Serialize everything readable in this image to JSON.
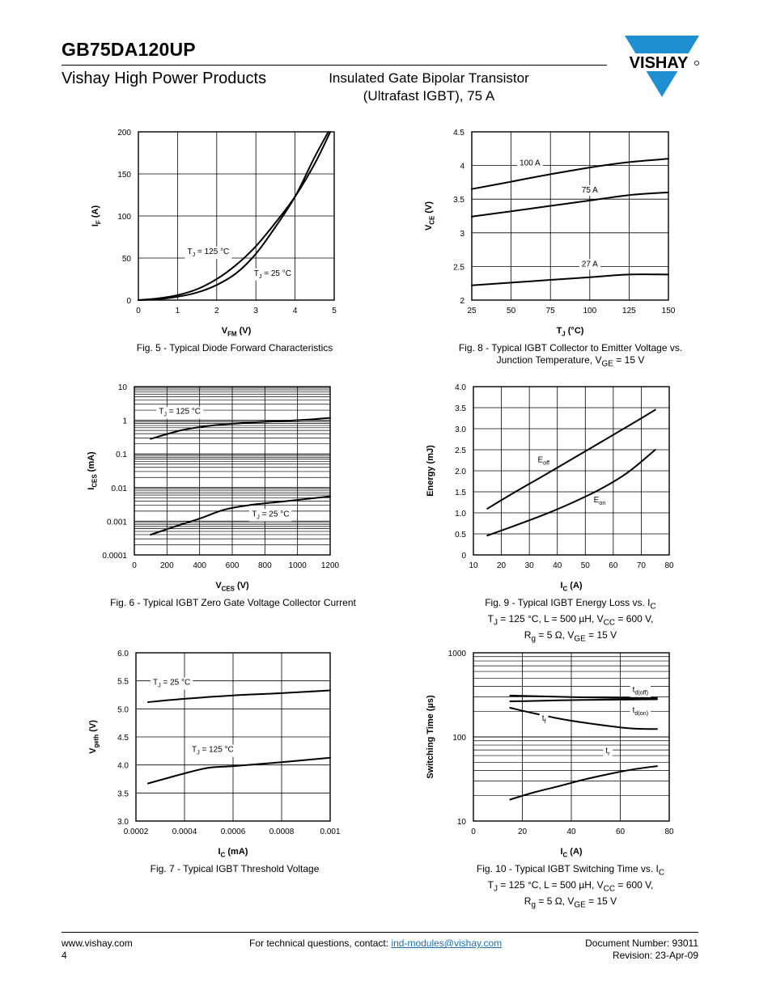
{
  "header": {
    "part_number": "GB75DA120UP",
    "division": "Vishay High Power Products",
    "subtitle_line1": "Insulated Gate Bipolar Transistor",
    "subtitle_line2": "(Ultrafast IGBT), 75 A",
    "logo_text": "VISHAY",
    "logo_color": "#1e8fd0"
  },
  "footer": {
    "website": "www.vishay.com",
    "page_number": "4",
    "contact_prefix": "For technical questions, contact: ",
    "contact_email": "ind-modules@vishay.com",
    "document_number": "Document Number: 93011",
    "revision": "Revision: 23-Apr-09"
  },
  "chart_data": [
    {
      "id": "fig5",
      "type": "line",
      "caption": [
        "Fig. 5 - Typical Diode Forward Characteristics"
      ],
      "xlabel": "V",
      "xlabel_sub": "FM",
      "xlabel_unit": " (V)",
      "ylabel": "I",
      "ylabel_sub": "F",
      "ylabel_unit": " (A)",
      "xscale": "linear",
      "yscale": "linear",
      "xlim": [
        0,
        5
      ],
      "ylim": [
        0,
        200
      ],
      "xticks": [
        0,
        1,
        2,
        3,
        4,
        5
      ],
      "yticks": [
        0,
        50,
        100,
        150,
        200
      ],
      "xgrid": [
        1,
        2,
        3,
        4
      ],
      "ygrid": [
        50,
        100,
        150
      ],
      "series": [
        {
          "name": "TJ = 125 °C",
          "label_main": "T",
          "label_sub": "J",
          "label_rest": " = 125 °C",
          "label_at": [
            1.25,
            55
          ],
          "label_anchor": "start",
          "x": [
            0,
            0.5,
            1.0,
            1.5,
            2.0,
            2.5,
            3.0,
            3.5,
            4.0,
            4.5,
            4.9
          ],
          "y": [
            0,
            2,
            6,
            13,
            25,
            42,
            64,
            92,
            123,
            162,
            200
          ]
        },
        {
          "name": "TJ = 25 °C",
          "label_main": "T",
          "label_sub": "J",
          "label_rest": " = 25 °C",
          "label_at": [
            2.95,
            29
          ],
          "label_anchor": "start",
          "x": [
            0,
            0.5,
            1.0,
            1.5,
            2.0,
            2.5,
            3.0,
            3.5,
            4.0,
            4.5,
            4.85
          ],
          "y": [
            0,
            1,
            4,
            9,
            18,
            32,
            55,
            87,
            123,
            170,
            200
          ]
        }
      ]
    },
    {
      "id": "fig8",
      "type": "line",
      "caption": [
        "Fig. 8 - Typical IGBT Collector to Emitter Voltage vs.",
        "Junction Temperature, V",
        "GE",
        " = 15 V"
      ],
      "xlabel": "T",
      "xlabel_sub": "J",
      "xlabel_unit": " (°C)",
      "ylabel": "V",
      "ylabel_sub": "CE",
      "ylabel_unit": " (V)",
      "xscale": "linear",
      "yscale": "linear",
      "xlim": [
        25,
        150
      ],
      "ylim": [
        2.0,
        4.5
      ],
      "xticks": [
        25,
        50,
        75,
        100,
        125,
        150
      ],
      "yticks": [
        2.0,
        2.5,
        3.0,
        3.5,
        4.0,
        4.5
      ],
      "xgrid": [
        50,
        75,
        100,
        125
      ],
      "ygrid": [
        2.5,
        3.0,
        3.5,
        4.0
      ],
      "series": [
        {
          "name": "100 A",
          "label_main": "100 A",
          "label_sub": "",
          "label_rest": "",
          "label_at": [
            62,
            4.0
          ],
          "label_anchor": "middle",
          "x": [
            25,
            50,
            75,
            100,
            125,
            150
          ],
          "y": [
            3.65,
            3.76,
            3.87,
            3.97,
            4.05,
            4.1
          ]
        },
        {
          "name": "75 A",
          "label_main": "75 A",
          "label_sub": "",
          "label_rest": "",
          "label_at": [
            100,
            3.6
          ],
          "label_anchor": "middle",
          "x": [
            25,
            50,
            75,
            100,
            125,
            150
          ],
          "y": [
            3.24,
            3.32,
            3.4,
            3.48,
            3.56,
            3.6
          ]
        },
        {
          "name": "27 A",
          "label_main": "27 A",
          "label_sub": "",
          "label_rest": "",
          "label_at": [
            100,
            2.5
          ],
          "label_anchor": "middle",
          "x": [
            25,
            50,
            75,
            100,
            125,
            150
          ],
          "y": [
            2.22,
            2.26,
            2.3,
            2.34,
            2.38,
            2.38
          ]
        }
      ]
    },
    {
      "id": "fig6",
      "type": "line",
      "caption": [
        "Fig. 6 - Typical IGBT Zero Gate Voltage Collector Current"
      ],
      "xlabel": "V",
      "xlabel_sub": "CES",
      "xlabel_unit": " (V)",
      "ylabel": "I",
      "ylabel_sub": "CES",
      "ylabel_unit": " (mA)",
      "xscale": "linear",
      "yscale": "log",
      "xlim": [
        0,
        1200
      ],
      "ylim": [
        0.0001,
        10
      ],
      "xticks": [
        0,
        200,
        400,
        600,
        800,
        1000,
        1200
      ],
      "yticks": [
        0.0001,
        0.001,
        0.01,
        0.1,
        1,
        10
      ],
      "ytick_labels": [
        "0.0001",
        "0.001",
        "0.01",
        "0.1",
        "1",
        "10"
      ],
      "xgrid": [
        200,
        400,
        600,
        800,
        1000
      ],
      "ygrid": "log-minor",
      "series": [
        {
          "name": "TJ = 125 °C",
          "label_main": "T",
          "label_sub": "J",
          "label_rest": " = 125 °C",
          "label_at": [
            150,
            1.55
          ],
          "label_anchor": "start",
          "x": [
            100,
            300,
            500,
            700,
            900,
            1100,
            1200
          ],
          "y": [
            0.28,
            0.52,
            0.72,
            0.85,
            0.95,
            1.08,
            1.18
          ]
        },
        {
          "name": "TJ = 25 °C",
          "label_main": "T",
          "label_sub": "J",
          "label_rest": " = 25 °C",
          "label_at": [
            720,
            0.0014
          ],
          "label_anchor": "start",
          "x": [
            100,
            250,
            400,
            550,
            700,
            850,
            1000,
            1200
          ],
          "y": [
            0.0004,
            0.0007,
            0.0012,
            0.0022,
            0.003,
            0.0036,
            0.0043,
            0.0055
          ]
        }
      ]
    },
    {
      "id": "fig9",
      "type": "line",
      "caption": [
        "Fig. 9 - Typical IGBT Energy Loss vs. I",
        "C",
        "T",
        "J",
        " = 125 °C, L = 500 µH, V",
        "CC",
        " = 600 V,",
        "R",
        "g",
        " = 5 Ω, V",
        "GE",
        " = 15 V"
      ],
      "xlabel": "I",
      "xlabel_sub": "C",
      "xlabel_unit": " (A)",
      "ylabel": "Energy (mJ)",
      "ylabel_sub": "",
      "ylabel_unit": "",
      "xscale": "linear",
      "yscale": "linear",
      "xlim": [
        10,
        80
      ],
      "ylim": [
        0,
        4.0
      ],
      "xticks": [
        10,
        20,
        30,
        40,
        50,
        60,
        70,
        80
      ],
      "yticks": [
        0,
        0.5,
        1.0,
        1.5,
        2.0,
        2.5,
        3.0,
        3.5,
        4.0
      ],
      "ytick_labels": [
        "0",
        "0.5",
        "1.0",
        "1.5",
        "2.0",
        "2.5",
        "3.0",
        "3.5",
        "4.0"
      ],
      "xgrid": [
        20,
        30,
        40,
        50,
        60,
        70
      ],
      "ygrid": [
        0.5,
        1.0,
        1.5,
        2.0,
        2.5,
        3.0,
        3.5
      ],
      "series": [
        {
          "name": "Eoff",
          "label_main": "E",
          "label_sub": "off",
          "label_rest": "",
          "label_at": [
            33,
            2.2
          ],
          "label_anchor": "start",
          "x": [
            15,
            25,
            35,
            45,
            55,
            65,
            75
          ],
          "y": [
            1.1,
            1.5,
            1.88,
            2.27,
            2.66,
            3.05,
            3.45
          ]
        },
        {
          "name": "Eon",
          "label_main": "E",
          "label_sub": "on",
          "label_rest": "",
          "label_at": [
            53,
            1.25
          ],
          "label_anchor": "start",
          "x": [
            15,
            25,
            35,
            45,
            55,
            65,
            75
          ],
          "y": [
            0.46,
            0.7,
            0.95,
            1.23,
            1.55,
            1.95,
            2.5
          ]
        }
      ]
    },
    {
      "id": "fig7",
      "type": "line",
      "caption": [
        "Fig. 7 - Typical IGBT Threshold Voltage"
      ],
      "xlabel": "I",
      "xlabel_sub": "C",
      "xlabel_unit": " (mA)",
      "ylabel": "V",
      "ylabel_sub": "geth",
      "ylabel_unit": " (V)",
      "xscale": "linear",
      "yscale": "linear",
      "xlim": [
        0.0002,
        0.001
      ],
      "ylim": [
        3.0,
        6.0
      ],
      "xticks": [
        0.0002,
        0.0004,
        0.0006,
        0.0008,
        0.001
      ],
      "xtick_labels": [
        "0.0002",
        "0.0004",
        "0.0006",
        "0.0008",
        "0.001"
      ],
      "yticks": [
        3.0,
        3.5,
        4.0,
        4.5,
        5.0,
        5.5,
        6.0
      ],
      "ytick_labels": [
        "3.0",
        "3.5",
        "4.0",
        "4.5",
        "5.0",
        "5.5",
        "6.0"
      ],
      "xgrid": [
        0.0004,
        0.0006,
        0.0008
      ],
      "ygrid": [
        3.5,
        4.0,
        4.5,
        5.0,
        5.5
      ],
      "series": [
        {
          "name": "TJ = 25 °C",
          "label_main": "T",
          "label_sub": "J",
          "label_rest": " = 25 °C",
          "label_at": [
            0.00027,
            5.43
          ],
          "label_anchor": "start",
          "x": [
            0.00025,
            0.0004,
            0.0006,
            0.0008,
            0.001
          ],
          "y": [
            5.12,
            5.18,
            5.24,
            5.28,
            5.33
          ]
        },
        {
          "name": "TJ = 125 °C",
          "label_main": "T",
          "label_sub": "J",
          "label_rest": " = 125 °C",
          "label_at": [
            0.00043,
            4.23
          ],
          "label_anchor": "start",
          "x": [
            0.00025,
            0.0004,
            0.0005,
            0.0006,
            0.0008,
            0.001
          ],
          "y": [
            3.67,
            3.85,
            3.95,
            3.98,
            4.05,
            4.13
          ]
        }
      ]
    },
    {
      "id": "fig10",
      "type": "line",
      "caption": [
        "Fig. 10 - Typical IGBT Switching Time vs. I",
        "C",
        "T",
        "J",
        " = 125 °C, L = 500 µH, V",
        "CC",
        " = 600 V,",
        "R",
        "g",
        " = 5 Ω, V",
        "GE",
        " = 15 V"
      ],
      "xlabel": "I",
      "xlabel_sub": "C",
      "xlabel_unit": " (A)",
      "ylabel": "Switching Time (µs)",
      "ylabel_sub": "",
      "ylabel_unit": "",
      "xscale": "linear",
      "yscale": "log",
      "xlim": [
        0,
        80
      ],
      "ylim": [
        10,
        1000
      ],
      "xticks": [
        0,
        20,
        40,
        60,
        80
      ],
      "yticks": [
        10,
        100,
        1000
      ],
      "ytick_labels": [
        "10",
        "100",
        "1000"
      ],
      "xgrid": [
        20,
        40,
        60
      ],
      "ygrid": "log-minor",
      "series": [
        {
          "name": "td(off)",
          "label_main": "t",
          "label_sub": "d(off)",
          "label_rest": "",
          "label_at": [
            65,
            340
          ],
          "label_anchor": "start",
          "x": [
            15,
            25,
            35,
            45,
            55,
            65,
            75
          ],
          "y": [
            310,
            305,
            300,
            296,
            292,
            290,
            290
          ]
        },
        {
          "name": "td(on)",
          "label_main": "t",
          "label_sub": "d(on)",
          "label_rest": "",
          "label_at": [
            65,
            195
          ],
          "label_anchor": "start",
          "x": [
            15,
            25,
            35,
            45,
            55,
            65,
            75
          ],
          "y": [
            265,
            268,
            272,
            275,
            277,
            279,
            280
          ]
        },
        {
          "name": "tf",
          "label_main": "t",
          "label_sub": "f",
          "label_rest": "",
          "label_at": [
            28,
            155
          ],
          "label_anchor": "start",
          "x": [
            15,
            25,
            35,
            45,
            55,
            65,
            75
          ],
          "y": [
            222,
            190,
            165,
            148,
            135,
            126,
            124
          ]
        },
        {
          "name": "tr",
          "label_main": "t",
          "label_sub": "r",
          "label_rest": "",
          "label_at": [
            54,
            64
          ],
          "label_anchor": "start",
          "x": [
            15,
            25,
            35,
            45,
            55,
            65,
            75
          ],
          "y": [
            18,
            22,
            26,
            31,
            36,
            41,
            45
          ]
        }
      ]
    }
  ]
}
